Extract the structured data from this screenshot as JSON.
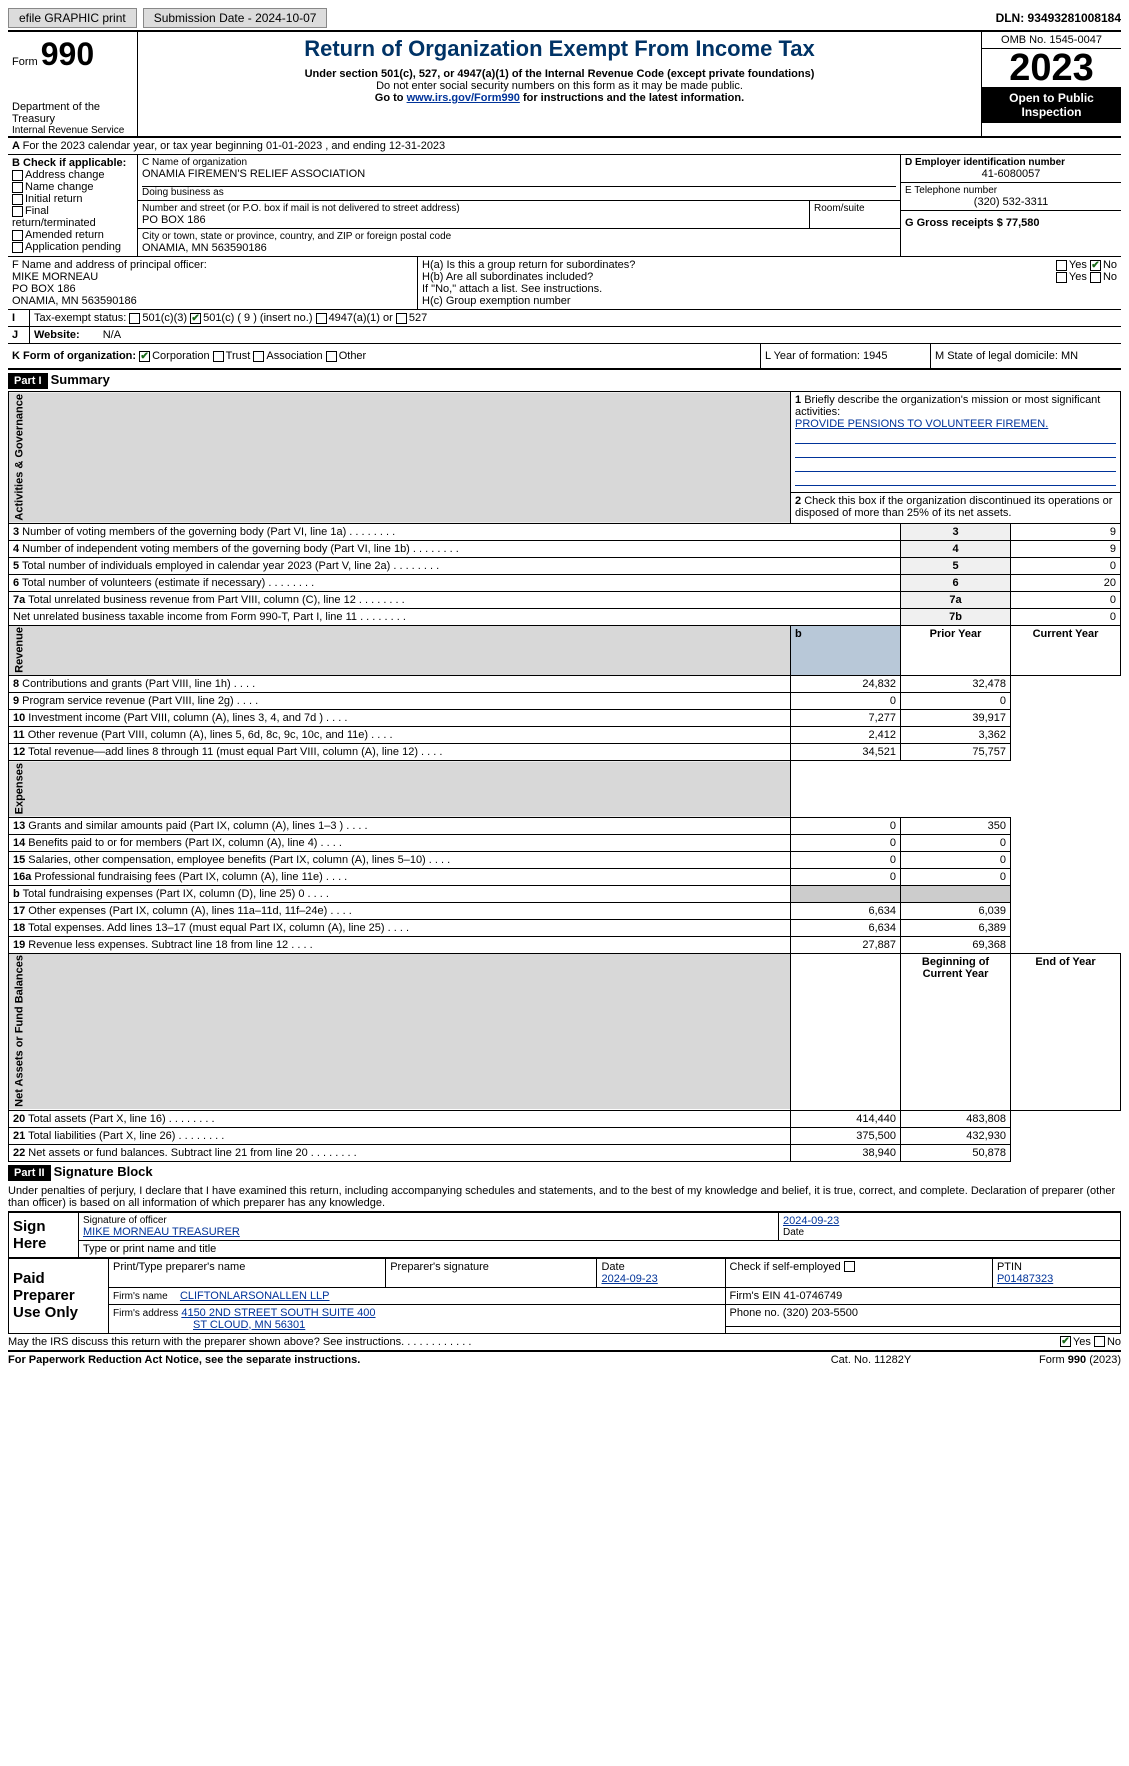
{
  "top": {
    "efile_label": "efile GRAPHIC print",
    "submission_label": "Submission Date - 2024-10-07",
    "dln_label": "DLN: 93493281008184"
  },
  "header": {
    "form_label": "Form",
    "form_number": "990",
    "dept": "Department of the Treasury",
    "irs": "Internal Revenue Service",
    "title": "Return of Organization Exempt From Income Tax",
    "sub1": "Under section 501(c), 527, or 4947(a)(1) of the Internal Revenue Code (except private foundations)",
    "sub2": "Do not enter social security numbers on this form as it may be made public.",
    "sub3_pre": "Go to ",
    "sub3_link": "www.irs.gov/Form990",
    "sub3_post": " for instructions and the latest information.",
    "omb": "OMB No. 1545-0047",
    "year": "2023",
    "open": "Open to Public Inspection"
  },
  "line_a": "For the 2023 calendar year, or tax year beginning 01-01-2023   , and ending 12-31-2023",
  "box_b": {
    "label": "B Check if applicable:",
    "opts": [
      "Address change",
      "Name change",
      "Initial return",
      "Final return/terminated",
      "Amended return",
      "Application pending"
    ]
  },
  "box_c": {
    "name_label": "C Name of organization",
    "name": "ONAMIA FIREMEN'S RELIEF ASSOCIATION",
    "dba_label": "Doing business as",
    "street_label": "Number and street (or P.O. box if mail is not delivered to street address)",
    "street": "PO BOX 186",
    "room_label": "Room/suite",
    "city_label": "City or town, state or province, country, and ZIP or foreign postal code",
    "city": "ONAMIA, MN  563590186"
  },
  "box_d": {
    "label": "D Employer identification number",
    "value": "41-6080057"
  },
  "box_e": {
    "label": "E Telephone number",
    "value": "(320) 532-3311"
  },
  "box_g": {
    "label": "G Gross receipts $ 77,580"
  },
  "box_f": {
    "label": "F  Name and address of principal officer:",
    "line1": "MIKE MORNEAU",
    "line2": "PO BOX 186",
    "line3": "ONAMIA, MN  563590186"
  },
  "box_h": {
    "ha": "H(a)  Is this a group return for subordinates?",
    "hb": "H(b)  Are all subordinates included?",
    "hb_note": "If \"No,\" attach a list. See instructions.",
    "hc": "H(c)  Group exemption number",
    "yes": "Yes",
    "no": "No"
  },
  "box_i": {
    "label": "Tax-exempt status:",
    "o1": "501(c)(3)",
    "o2": "501(c) ( 9 ) (insert no.)",
    "o3": "4947(a)(1) or",
    "o4": "527"
  },
  "box_j": {
    "label": "Website:",
    "value": "N/A"
  },
  "box_k": {
    "label": "K Form of organization:",
    "o1": "Corporation",
    "o2": "Trust",
    "o3": "Association",
    "o4": "Other"
  },
  "box_l": "L Year of formation: 1945",
  "box_m": "M State of legal domicile: MN",
  "part1": {
    "bar": "Part I",
    "title": "Summary"
  },
  "summary": {
    "l1": "Briefly describe the organization's mission or most significant activities:",
    "l1_val": "PROVIDE PENSIONS TO VOLUNTEER FIREMEN.",
    "l2": "Check this box      if the organization discontinued its operations or disposed of more than 25% of its net assets.",
    "rows_gov": [
      {
        "n": "3",
        "t": "Number of voting members of the governing body (Part VI, line 1a)",
        "k": "3",
        "v": "9"
      },
      {
        "n": "4",
        "t": "Number of independent voting members of the governing body (Part VI, line 1b)",
        "k": "4",
        "v": "9"
      },
      {
        "n": "5",
        "t": "Total number of individuals employed in calendar year 2023 (Part V, line 2a)",
        "k": "5",
        "v": "0"
      },
      {
        "n": "6",
        "t": "Total number of volunteers (estimate if necessary)",
        "k": "6",
        "v": "20"
      },
      {
        "n": "7a",
        "t": "Total unrelated business revenue from Part VIII, column (C), line 12",
        "k": "7a",
        "v": "0"
      },
      {
        "n": "",
        "t": "Net unrelated business taxable income from Form 990-T, Part I, line 11",
        "k": "7b",
        "v": "0"
      }
    ],
    "hdr_b": "b",
    "hdr_prior": "Prior Year",
    "hdr_curr": "Current Year",
    "rows_rev": [
      {
        "n": "8",
        "t": "Contributions and grants (Part VIII, line 1h)",
        "p": "24,832",
        "c": "32,478"
      },
      {
        "n": "9",
        "t": "Program service revenue (Part VIII, line 2g)",
        "p": "0",
        "c": "0"
      },
      {
        "n": "10",
        "t": "Investment income (Part VIII, column (A), lines 3, 4, and 7d )",
        "p": "7,277",
        "c": "39,917"
      },
      {
        "n": "11",
        "t": "Other revenue (Part VIII, column (A), lines 5, 6d, 8c, 9c, 10c, and 11e)",
        "p": "2,412",
        "c": "3,362"
      },
      {
        "n": "12",
        "t": "Total revenue—add lines 8 through 11 (must equal Part VIII, column (A), line 12)",
        "p": "34,521",
        "c": "75,757"
      }
    ],
    "rows_exp": [
      {
        "n": "13",
        "t": "Grants and similar amounts paid (Part IX, column (A), lines 1–3 )",
        "p": "0",
        "c": "350"
      },
      {
        "n": "14",
        "t": "Benefits paid to or for members (Part IX, column (A), line 4)",
        "p": "0",
        "c": "0"
      },
      {
        "n": "15",
        "t": "Salaries, other compensation, employee benefits (Part IX, column (A), lines 5–10)",
        "p": "0",
        "c": "0"
      },
      {
        "n": "16a",
        "t": "Professional fundraising fees (Part IX, column (A), line 11e)",
        "p": "0",
        "c": "0"
      },
      {
        "n": "b",
        "t": "Total fundraising expenses (Part IX, column (D), line 25) 0",
        "p": "grey",
        "c": "grey"
      },
      {
        "n": "17",
        "t": "Other expenses (Part IX, column (A), lines 11a–11d, 11f–24e)",
        "p": "6,634",
        "c": "6,039"
      },
      {
        "n": "18",
        "t": "Total expenses. Add lines 13–17 (must equal Part IX, column (A), line 25)",
        "p": "6,634",
        "c": "6,389"
      },
      {
        "n": "19",
        "t": "Revenue less expenses. Subtract line 18 from line 12",
        "p": "27,887",
        "c": "69,368"
      }
    ],
    "hdr_beg": "Beginning of Current Year",
    "hdr_end": "End of Year",
    "rows_net": [
      {
        "n": "20",
        "t": "Total assets (Part X, line 16)",
        "p": "414,440",
        "c": "483,808"
      },
      {
        "n": "21",
        "t": "Total liabilities (Part X, line 26)",
        "p": "375,500",
        "c": "432,930"
      },
      {
        "n": "22",
        "t": "Net assets or fund balances. Subtract line 21 from line 20",
        "p": "38,940",
        "c": "50,878"
      }
    ],
    "vert_gov": "Activities & Governance",
    "vert_rev": "Revenue",
    "vert_exp": "Expenses",
    "vert_net": "Net Assets or Fund Balances"
  },
  "part2": {
    "bar": "Part II",
    "title": "Signature Block"
  },
  "sig_para": "Under penalties of perjury, I declare that I have examined this return, including accompanying schedules and statements, and to the best of my knowledge and belief, it is true, correct, and complete. Declaration of preparer (other than officer) is based on all information of which preparer has any knowledge.",
  "sign_here": {
    "label": "Sign Here",
    "sig_label": "Signature of officer",
    "name": "MIKE MORNEAU  TREASURER",
    "name_label": "Type or print name and title",
    "date_label": "Date",
    "date": "2024-09-23"
  },
  "paid": {
    "label": "Paid Preparer Use Only",
    "c1": "Print/Type preparer's name",
    "c2": "Preparer's signature",
    "c3": "Date",
    "c3v": "2024-09-23",
    "c4": "Check       if self-employed",
    "c5": "PTIN",
    "c5v": "P01487323",
    "firm_label": "Firm's name",
    "firm": "CLIFTONLARSONALLEN LLP",
    "ein_label": "Firm's EIN  41-0746749",
    "addr_label": "Firm's address",
    "addr1": "4150 2ND STREET SOUTH SUITE 400",
    "addr2": "ST CLOUD, MN  56301",
    "phone": "Phone no. (320) 203-5500"
  },
  "discuss": {
    "text": "May the IRS discuss this return with the preparer shown above? See instructions.",
    "yes": "Yes",
    "no": "No"
  },
  "footer": {
    "pra": "For Paperwork Reduction Act Notice, see the separate instructions.",
    "cat": "Cat. No. 11282Y",
    "form": "Form 990 (2023)"
  }
}
